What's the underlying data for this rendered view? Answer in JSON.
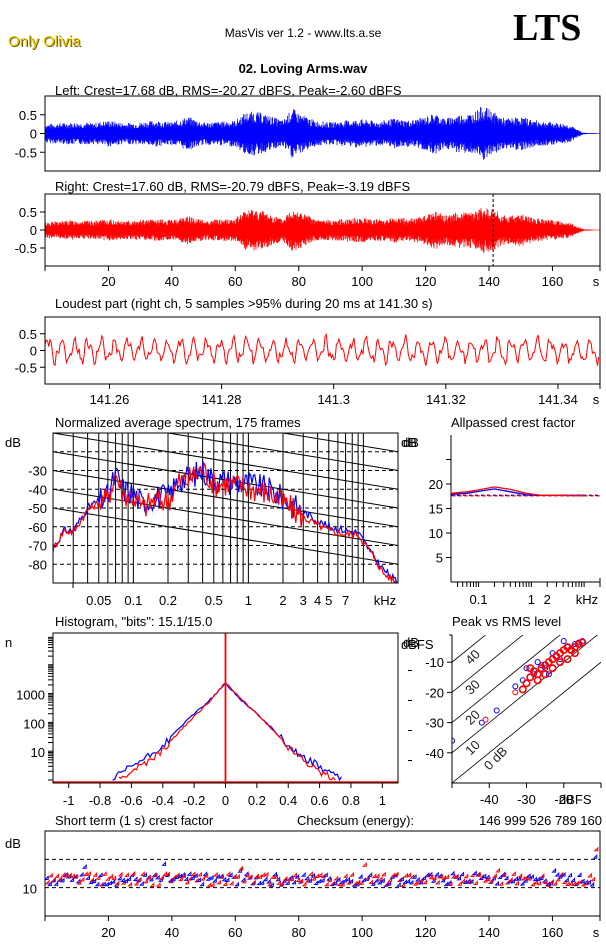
{
  "header": {
    "brand": "Only Olivia",
    "app_title": "MasVis ver 1.2 - www.lts.a.se",
    "logo": "LTS",
    "file_title": "02. Loving Arms.wav"
  },
  "colors": {
    "left": "#0000ff",
    "right": "#ff0000",
    "brand": "#e8c800"
  },
  "chart_data": [
    {
      "id": "left-waveform",
      "type": "area",
      "title": "Left: Crest=17.68 dB, RMS=-20.27 dBFS, Peak=-2.60 dBFS",
      "yticks": [
        "0.5",
        "0",
        "-0.5"
      ],
      "ytick_values": [
        0.5,
        0,
        -0.5
      ],
      "ylim": [
        -1,
        1
      ],
      "xlim": [
        0,
        175
      ],
      "envelope_x": [
        0,
        5,
        10,
        15,
        20,
        25,
        30,
        35,
        40,
        45,
        50,
        55,
        60,
        63,
        66,
        70,
        75,
        78,
        80,
        85,
        90,
        95,
        100,
        105,
        110,
        115,
        120,
        123,
        126,
        130,
        135,
        138,
        141,
        145,
        150,
        155,
        160,
        165,
        168,
        170,
        175
      ],
      "envelope_peak": [
        0.25,
        0.28,
        0.3,
        0.28,
        0.35,
        0.28,
        0.3,
        0.35,
        0.3,
        0.45,
        0.3,
        0.32,
        0.35,
        0.55,
        0.6,
        0.5,
        0.35,
        0.68,
        0.55,
        0.35,
        0.3,
        0.35,
        0.38,
        0.32,
        0.4,
        0.35,
        0.45,
        0.55,
        0.4,
        0.5,
        0.55,
        0.75,
        0.6,
        0.4,
        0.45,
        0.35,
        0.3,
        0.25,
        0.1,
        0.02,
        0.01
      ]
    },
    {
      "id": "right-waveform",
      "type": "area",
      "title": "Right: Crest=17.60 dB, RMS=-20.79 dBFS, Peak=-3.19 dBFS",
      "yticks": [
        "0.5",
        "0",
        "-0.5"
      ],
      "ytick_values": [
        0.5,
        0,
        -0.5
      ],
      "ylim": [
        -1,
        1
      ],
      "xlim": [
        0,
        175
      ],
      "xticks": [
        "20",
        "40",
        "60",
        "80",
        "100",
        "120",
        "140",
        "160"
      ],
      "xtick_values": [
        20,
        40,
        60,
        80,
        100,
        120,
        140,
        160
      ],
      "xunit": "s",
      "marker_x": 141.3,
      "envelope_x": [
        0,
        5,
        10,
        15,
        20,
        25,
        30,
        35,
        40,
        45,
        50,
        55,
        60,
        63,
        66,
        70,
        75,
        78,
        80,
        85,
        90,
        95,
        100,
        105,
        110,
        115,
        120,
        123,
        126,
        130,
        135,
        138,
        141,
        145,
        150,
        155,
        160,
        165,
        168,
        170,
        175
      ],
      "envelope_peak": [
        0.22,
        0.25,
        0.28,
        0.25,
        0.3,
        0.25,
        0.28,
        0.3,
        0.28,
        0.4,
        0.28,
        0.3,
        0.32,
        0.55,
        0.6,
        0.5,
        0.3,
        0.65,
        0.55,
        0.3,
        0.28,
        0.32,
        0.35,
        0.3,
        0.35,
        0.32,
        0.4,
        0.55,
        0.4,
        0.5,
        0.5,
        0.65,
        0.6,
        0.4,
        0.45,
        0.32,
        0.28,
        0.22,
        0.1,
        0.02,
        0.01
      ]
    },
    {
      "id": "loudest-part",
      "type": "line",
      "title": "Loudest part (right ch, 5 samples >95% during 20 ms at 141.30 s)",
      "yticks": [
        "0.5",
        "0",
        "-0.5"
      ],
      "ytick_values": [
        0.5,
        0,
        -0.5
      ],
      "ylim": [
        -1,
        1
      ],
      "xlim": [
        141.2485,
        141.3475
      ],
      "xticks": [
        "141.26",
        "141.28",
        "141.3",
        "141.32",
        "141.34"
      ],
      "xtick_values": [
        141.26,
        141.28,
        141.3,
        141.32,
        141.34
      ],
      "xunit": "s",
      "samples": 440
    },
    {
      "id": "spectrum",
      "type": "line",
      "title": "Normalized average spectrum, 175 frames",
      "ylabel": "dB",
      "ylabel_right": "dB",
      "yticks": [
        "-30",
        "-40",
        "-50",
        "-60",
        "-70",
        "-80"
      ],
      "ytick_values": [
        -30,
        -40,
        -50,
        -60,
        -70,
        -80
      ],
      "ylim": [
        -90,
        -10
      ],
      "xscale": "log",
      "xlim_khz": [
        0.02,
        20
      ],
      "xticks": [
        "0.05",
        "0.1",
        "0.2",
        "0.5",
        "1",
        "2",
        "3",
        "4",
        "5",
        "7"
      ],
      "xtick_values": [
        0.05,
        0.1,
        0.2,
        0.5,
        1,
        2,
        3,
        4,
        5,
        7
      ],
      "xunit": "kHz",
      "series": [
        {
          "name": "Left",
          "color": "#0000ff",
          "x": [
            0.02,
            0.025,
            0.03,
            0.04,
            0.05,
            0.06,
            0.07,
            0.08,
            0.1,
            0.12,
            0.15,
            0.2,
            0.25,
            0.3,
            0.4,
            0.5,
            0.7,
            1,
            1.5,
            2,
            3,
            4,
            5,
            7,
            9,
            12,
            15,
            20
          ],
          "y": [
            -72,
            -62,
            -62,
            -50,
            -46,
            -44,
            -32,
            -40,
            -42,
            -48,
            -44,
            -44,
            -35,
            -34,
            -30,
            -35,
            -36,
            -37,
            -40,
            -45,
            -52,
            -57,
            -60,
            -62,
            -63,
            -75,
            -83,
            -90
          ]
        },
        {
          "name": "Right",
          "color": "#ff0000",
          "x": [
            0.02,
            0.025,
            0.03,
            0.04,
            0.05,
            0.06,
            0.07,
            0.08,
            0.1,
            0.12,
            0.15,
            0.2,
            0.25,
            0.3,
            0.4,
            0.5,
            0.7,
            1,
            1.5,
            2,
            3,
            4,
            5,
            7,
            9,
            12,
            15,
            20
          ],
          "y": [
            -72,
            -62,
            -63,
            -51,
            -47,
            -45,
            -31,
            -42,
            -44,
            -50,
            -46,
            -46,
            -36,
            -35,
            -29,
            -37,
            -37,
            -39,
            -42,
            -47,
            -55,
            -59,
            -62,
            -64,
            -64,
            -75,
            -85,
            -90
          ]
        }
      ]
    },
    {
      "id": "allpassed-crest",
      "type": "line",
      "title": "Allpassed crest factor",
      "ylabel": "dB",
      "yticks": [
        "20",
        "15",
        "10",
        "5"
      ],
      "ytick_values": [
        20,
        15,
        10,
        5
      ],
      "ylim": [
        0,
        30
      ],
      "xscale": "log",
      "xticks": [
        "0.1",
        "1",
        "2"
      ],
      "xtick_values": [
        0.1,
        1,
        2
      ],
      "xunit": "kHz",
      "series": [
        {
          "name": "Left",
          "color": "#0000ff",
          "x": [
            0.03,
            0.06,
            0.1,
            0.2,
            0.4,
            0.8,
            1.5,
            3,
            10
          ],
          "y": [
            17.9,
            18.1,
            18.5,
            19.0,
            18.4,
            17.8,
            17.7,
            17.7,
            17.7
          ]
        },
        {
          "name": "Right",
          "color": "#ff0000",
          "x": [
            0.03,
            0.06,
            0.1,
            0.2,
            0.4,
            0.8,
            1.5,
            3,
            10
          ],
          "y": [
            18.1,
            18.4,
            18.8,
            19.4,
            18.9,
            18.1,
            17.7,
            17.7,
            17.6
          ]
        }
      ],
      "reference_left": 17.68,
      "reference_right": 17.6
    },
    {
      "id": "histogram",
      "type": "line",
      "title": "Histogram, \"bits\": 15.1/15.0",
      "ylabel": "n",
      "ylabel_right": "dB",
      "yscale": "log",
      "yticks": [
        "1000",
        "100",
        "10"
      ],
      "ytick_values": [
        1000,
        100,
        10
      ],
      "ylim": [
        1,
        100000
      ],
      "xlim": [
        -1.1,
        1.1
      ],
      "xticks": [
        "-1",
        "-0.8",
        "-0.6",
        "-0.4",
        "-0.2",
        "0",
        "0.2",
        "0.4",
        "0.6",
        "0.8",
        "1"
      ],
      "xtick_values": [
        -1,
        -0.8,
        -0.6,
        -0.4,
        -0.2,
        0,
        0.2,
        0.4,
        0.6,
        0.8,
        1
      ],
      "series": [
        {
          "name": "Left",
          "color": "#0000ff",
          "x": [
            -0.72,
            -0.6,
            -0.5,
            -0.4,
            -0.3,
            -0.2,
            -0.1,
            0,
            0.1,
            0.2,
            0.3,
            0.4,
            0.5,
            0.6,
            0.74
          ],
          "y": [
            1,
            3,
            6,
            15,
            60,
            200,
            600,
            2200,
            600,
            200,
            60,
            15,
            6,
            3,
            1
          ]
        },
        {
          "name": "Right",
          "color": "#ff0000",
          "x": [
            -0.68,
            -0.6,
            -0.5,
            -0.4,
            -0.3,
            -0.2,
            -0.1,
            0,
            0.1,
            0.2,
            0.3,
            0.4,
            0.5,
            0.6,
            0.7
          ],
          "y": [
            1,
            2,
            4,
            10,
            45,
            160,
            550,
            2400,
            650,
            200,
            55,
            14,
            5,
            2,
            1
          ]
        }
      ]
    },
    {
      "id": "peak-vs-rms",
      "type": "scatter",
      "title": "Peak vs RMS level",
      "ylabel": "dBFS",
      "xlabel": "dBFS",
      "yticks": [
        "-10",
        "-20",
        "-30",
        "-40"
      ],
      "ytick_values": [
        -10,
        -20,
        -30,
        -40
      ],
      "xticks": [
        "-40",
        "-30",
        "-20"
      ],
      "xtick_values": [
        -40,
        -30,
        -20
      ],
      "xlim": [
        -50,
        -10
      ],
      "ylim": [
        -50,
        -1
      ],
      "diagonal_labels": [
        "40",
        "30",
        "20",
        "10",
        "0 dB"
      ],
      "diagonal_values": [
        40,
        30,
        20,
        10,
        0
      ],
      "series": [
        {
          "name": "Left",
          "color": "#0000ff",
          "points": [
            [
              -50,
              -36
            ],
            [
              -42,
              -30
            ],
            [
              -38,
              -26
            ],
            [
              -33,
              -18
            ],
            [
              -31,
              -16
            ],
            [
              -30,
              -12
            ],
            [
              -27,
              -10
            ],
            [
              -24,
              -14
            ],
            [
              -23,
              -7
            ],
            [
              -20,
              -3
            ],
            [
              -17,
              -4
            ],
            [
              -15,
              -3
            ],
            [
              -26,
              -11
            ],
            [
              -22,
              -8
            ],
            [
              -18,
              -6
            ],
            [
              -28,
              -14
            ],
            [
              -25,
              -12
            ],
            [
              -21,
              -9
            ],
            [
              -19,
              -5
            ],
            [
              -16,
              -3.5
            ]
          ]
        },
        {
          "name": "Right",
          "color": "#ff0000",
          "points": [
            [
              -41,
              -29
            ],
            [
              -33,
              -20
            ],
            [
              -31,
              -19
            ],
            [
              -30,
              -17
            ],
            [
              -29,
              -15
            ],
            [
              -28,
              -13
            ],
            [
              -27,
              -14
            ],
            [
              -26,
              -12
            ],
            [
              -25,
              -11
            ],
            [
              -24,
              -10
            ],
            [
              -23,
              -9
            ],
            [
              -22,
              -8
            ],
            [
              -21,
              -7
            ],
            [
              -20,
              -6
            ],
            [
              -19,
              -5
            ],
            [
              -18,
              -6
            ],
            [
              -17,
              -5
            ],
            [
              -16,
              -4
            ],
            [
              -15,
              -3.5
            ],
            [
              -29,
              -12
            ],
            [
              -27,
              -16
            ],
            [
              -25,
              -14
            ],
            [
              -23,
              -12
            ],
            [
              -21,
              -10
            ],
            [
              -19,
              -9
            ],
            [
              -17,
              -7
            ]
          ]
        }
      ]
    },
    {
      "id": "short-term-crest",
      "type": "scatter",
      "title": "Short term (1 s) crest factor",
      "ylabel": "dB",
      "yticks": [
        "10"
      ],
      "ytick_values": [
        10
      ],
      "ylim": [
        5,
        20
      ],
      "dashed_lines": [
        10,
        15
      ],
      "xlim": [
        0,
        175
      ],
      "xticks": [
        "20",
        "40",
        "60",
        "80",
        "100",
        "120",
        "140",
        "160"
      ],
      "xtick_values": [
        20,
        40,
        60,
        80,
        100,
        120,
        140,
        160
      ],
      "xunit": "s",
      "checksum_label": "Checksum (energy):",
      "checksum_value": "146 999 526 789 160"
    }
  ]
}
